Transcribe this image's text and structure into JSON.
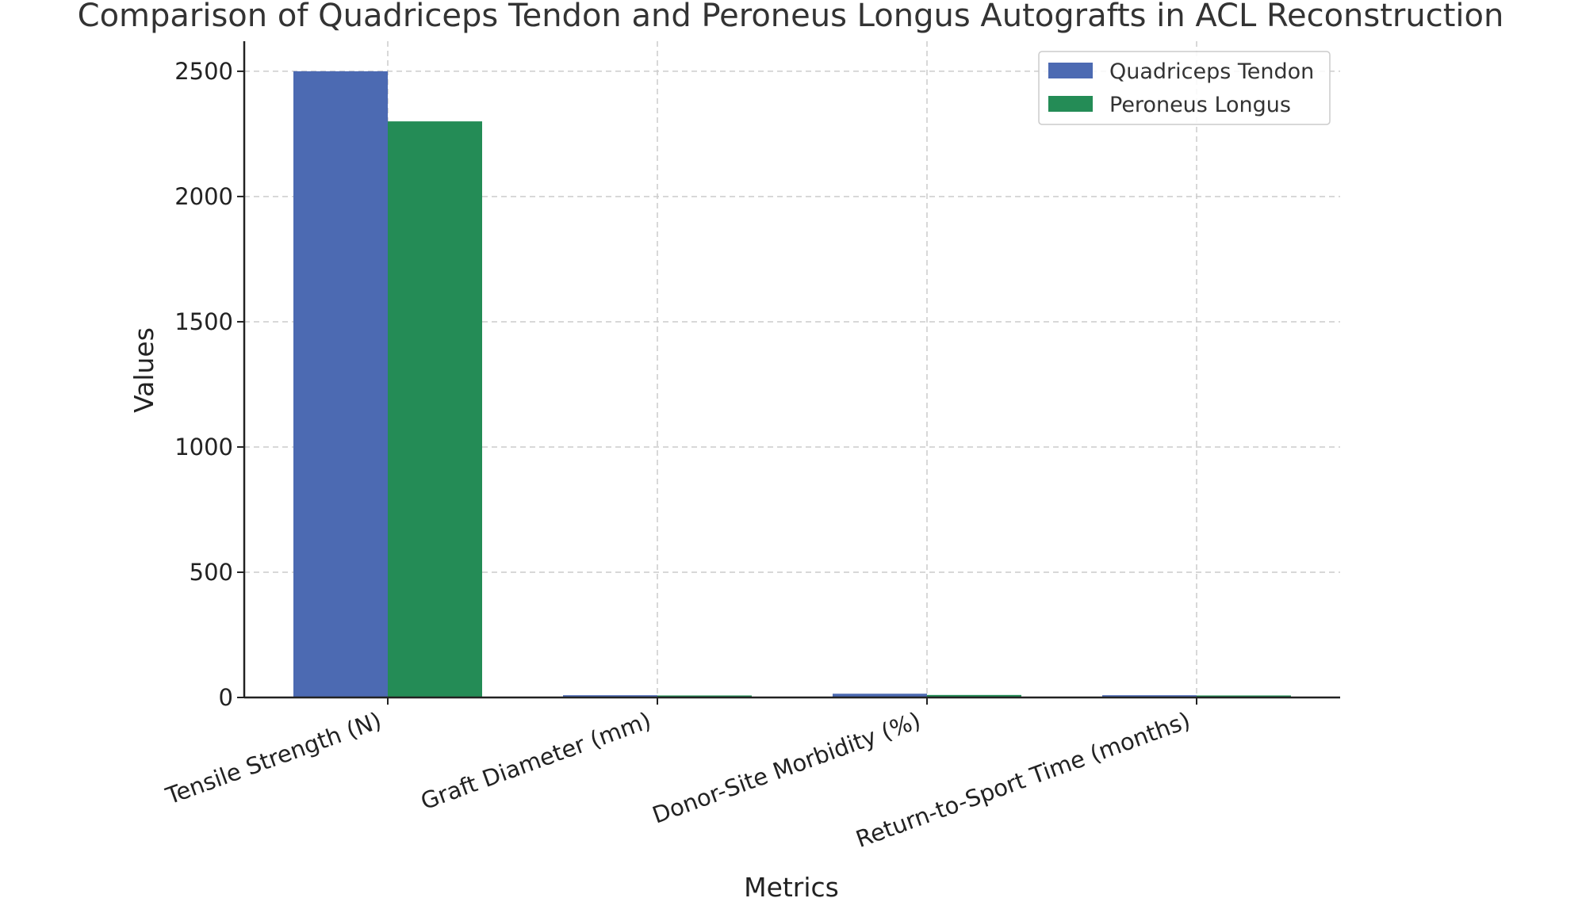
{
  "chart_data": {
    "type": "bar",
    "title": "Comparison of Quadriceps Tendon and Peroneus Longus Autografts in ACL Reconstruction",
    "xlabel": "Metrics",
    "ylabel": "Values",
    "categories": [
      "Tensile Strength (N)",
      "Graft Diameter (mm)",
      "Donor-Site Morbidity (%)",
      "Return-to-Sport Time (months)"
    ],
    "series": [
      {
        "name": "Quadriceps Tendon",
        "color": "#4c6ab2",
        "values": [
          2500,
          9,
          15,
          9
        ]
      },
      {
        "name": "Peroneus Longus",
        "color": "#248c56",
        "values": [
          2300,
          8,
          10,
          8
        ]
      }
    ],
    "ylim": [
      0,
      2620
    ],
    "yticks": [
      0,
      500,
      1000,
      1500,
      2000,
      2500
    ],
    "grid": true,
    "legend_position": "top-right"
  }
}
